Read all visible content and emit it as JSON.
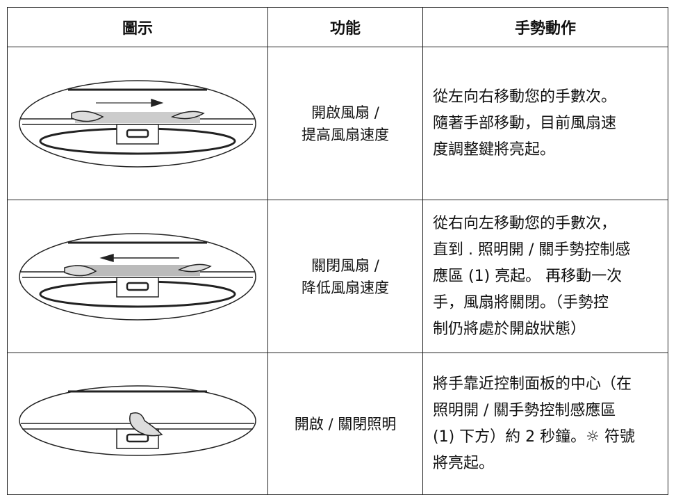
{
  "table": {
    "header": [
      "圖示",
      "功能",
      "手勢動作"
    ],
    "rows": [
      {
        "function": [
          "開啟風扇 /",
          "提高風扇速度"
        ],
        "gesture": [
          "從左向右移動您的手數次。",
          "隨著手部移動，目前風扇速",
          "度調整鍵將亮起。"
        ]
      },
      {
        "function": [
          "關閉風扇 /",
          "降低風扇速度"
        ],
        "gesture": [
          "從右向左移動您的手數次，",
          "直到 . 照明開 / 關手勢控制感",
          "應區 (1) 亮起。 再移動一次",
          "手，風扇將關閉。（手勢控",
          "制仍將處於開啟狀態）"
        ]
      },
      {
        "function": [
          "開啟 / 關閉照明"
        ],
        "gesture": [
          "將手靠近控制面板的中心（在",
          "照明開 / 關手勢控制感應區",
          "(1) 下方）約 2 秒鐘。☼ 符號",
          "將亮起。"
        ]
      }
    ]
  }
}
